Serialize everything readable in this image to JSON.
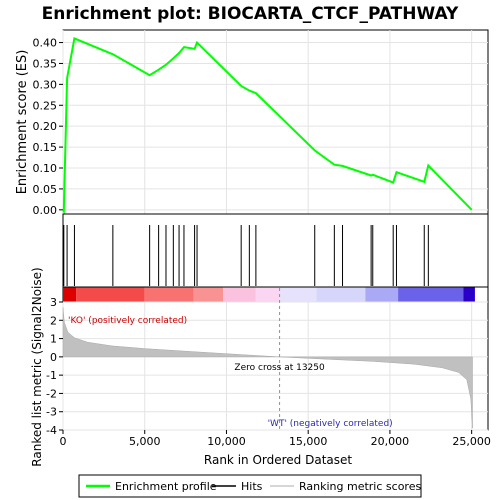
{
  "chart_data": {
    "type": "line",
    "title": "Enrichment plot: BIOCARTA_CTCF_PATHWAY",
    "top_panel": {
      "ylabel": "Enrichment score (ES)",
      "ylim": [
        -0.01,
        0.43
      ],
      "yticks": [
        "0.00",
        "0.05",
        "0.10",
        "0.15",
        "0.20",
        "0.25",
        "0.30",
        "0.35",
        "0.40"
      ],
      "series_name": "Enrichment profile",
      "color": "#00ff00",
      "x": [
        0,
        50,
        250,
        700,
        3050,
        5300,
        5850,
        6300,
        6750,
        7100,
        7400,
        8050,
        8200,
        10900,
        11400,
        11800,
        15400,
        16600,
        17100,
        18850,
        18950,
        20200,
        20400,
        22100,
        22350,
        25000
      ],
      "y": [
        0.0,
        -0.003,
        0.315,
        0.41,
        0.372,
        0.322,
        0.335,
        0.347,
        0.362,
        0.375,
        0.389,
        0.385,
        0.4,
        0.296,
        0.285,
        0.279,
        0.142,
        0.108,
        0.105,
        0.082,
        0.084,
        0.065,
        0.09,
        0.067,
        0.106,
        0.0
      ]
    },
    "hits": [
      50,
      250,
      700,
      3050,
      5300,
      5850,
      6300,
      6750,
      7100,
      7400,
      8050,
      8200,
      10900,
      11400,
      11800,
      15400,
      16600,
      17100,
      18850,
      18950,
      20200,
      20400,
      22100,
      22350
    ],
    "bottom_panel": {
      "ylabel": "Ranked list metric (Signal2Noise)",
      "xlabel": "Rank in Ordered Dataset",
      "ylim": [
        -4,
        3
      ],
      "yticks": [
        "3",
        "2",
        "1",
        "0",
        "-1",
        "-2",
        "-3",
        "-4"
      ],
      "metric_x": [
        0,
        80,
        300,
        700,
        1500,
        3000,
        5000,
        8000,
        11000,
        13250,
        16000,
        19000,
        21500,
        23200,
        24200,
        24700,
        24950,
        25050
      ],
      "metric_y": [
        2.7,
        1.9,
        1.35,
        1.05,
        0.8,
        0.6,
        0.45,
        0.28,
        0.12,
        0.0,
        -0.12,
        -0.25,
        -0.4,
        -0.6,
        -0.85,
        -1.25,
        -2.3,
        -3.9
      ],
      "zero_cross_label": "Zero cross at 13250",
      "zero_cross_x": 13250,
      "pos_label": "'KO' (positively correlated)",
      "neg_label": "'WT' (negatively correlated)"
    },
    "xlim": [
      0,
      26000
    ],
    "xticks": [
      "0",
      "5,000",
      "10,000",
      "15,000",
      "20,000",
      "25,000"
    ],
    "xtick_values": [
      0,
      5000,
      10000,
      15000,
      20000,
      25000
    ],
    "heatmap_bands": [
      {
        "from": 0,
        "to": 800,
        "color": "#dd0000"
      },
      {
        "from": 800,
        "to": 5000,
        "color": "#f44a4a"
      },
      {
        "from": 5000,
        "to": 8000,
        "color": "#f87272"
      },
      {
        "from": 8000,
        "to": 9800,
        "color": "#f99393"
      },
      {
        "from": 9800,
        "to": 11800,
        "color": "#fbc2e0"
      },
      {
        "from": 11800,
        "to": 13250,
        "color": "#fad6f2"
      },
      {
        "from": 13250,
        "to": 15500,
        "color": "#e6e2fb"
      },
      {
        "from": 15500,
        "to": 18500,
        "color": "#d6d6fb"
      },
      {
        "from": 18500,
        "to": 20500,
        "color": "#a9a9f5"
      },
      {
        "from": 20500,
        "to": 24500,
        "color": "#6a62e8"
      },
      {
        "from": 24500,
        "to": 25200,
        "color": "#2a00c8"
      }
    ],
    "legend": {
      "placement": "bottom",
      "items": [
        {
          "label": "Enrichment profile",
          "color": "#00ff00"
        },
        {
          "label": "Hits",
          "color": "#000000"
        },
        {
          "label": "Ranking metric scores",
          "color": "#c8c8c8"
        }
      ]
    }
  }
}
